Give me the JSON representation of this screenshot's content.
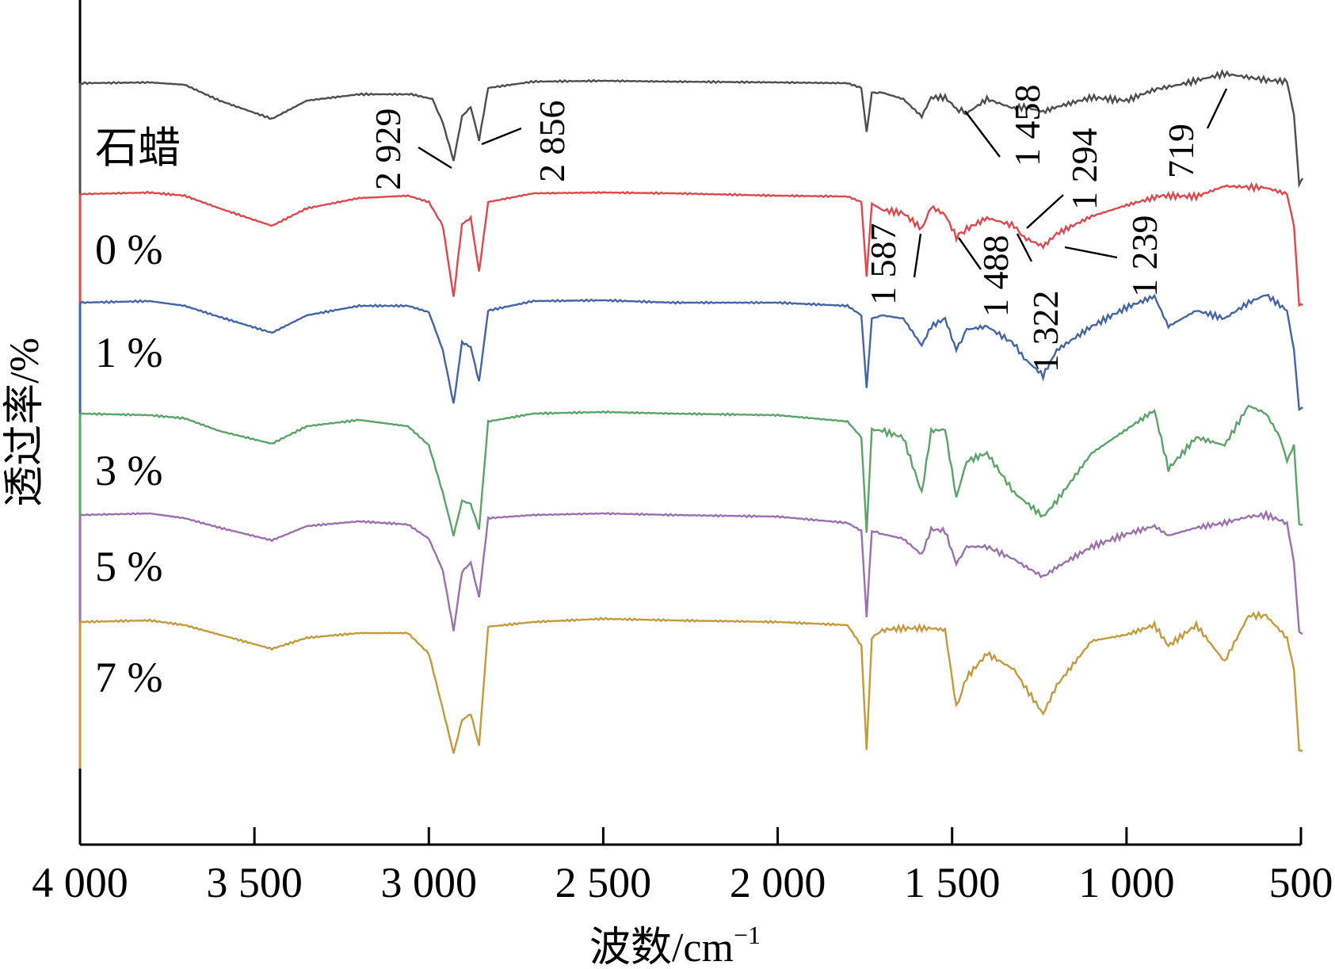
{
  "chart_data": {
    "type": "line",
    "xlabel": "波数/cm",
    "xlabel_sup": "−1",
    "ylabel": "透过率/%",
    "xlim": [
      4000,
      500
    ],
    "x_reversed": true,
    "xticks": [
      4000,
      3500,
      3000,
      2500,
      2000,
      1500,
      1000,
      500
    ],
    "xtick_labels": [
      "4 000",
      "3 500",
      "3 000",
      "2 500",
      "2 000",
      "1 500",
      "1 000",
      "500"
    ],
    "series": [
      {
        "name": "石蜡",
        "color": "#4d4d4d",
        "baseline": 0,
        "points": [
          [
            4000,
            0
          ],
          [
            3800,
            1
          ],
          [
            3700,
            -2
          ],
          [
            3600,
            -22
          ],
          [
            3450,
            -45
          ],
          [
            3350,
            -22
          ],
          [
            3200,
            -14
          ],
          [
            3050,
            -14
          ],
          [
            2990,
            -20
          ],
          [
            2960,
            -50
          ],
          [
            2929,
            -98
          ],
          [
            2905,
            -42
          ],
          [
            2880,
            -30
          ],
          [
            2856,
            -72
          ],
          [
            2830,
            -6
          ],
          [
            2700,
            2
          ],
          [
            2500,
            3
          ],
          [
            2300,
            2
          ],
          [
            2000,
            1
          ],
          [
            1800,
            0
          ],
          [
            1760,
            -6
          ],
          [
            1745,
            -62
          ],
          [
            1730,
            -12
          ],
          [
            1700,
            -12
          ],
          [
            1640,
            -20
          ],
          [
            1587,
            -42
          ],
          [
            1560,
            -18
          ],
          [
            1520,
            -18
          ],
          [
            1488,
            -32
          ],
          [
            1458,
            -38
          ],
          [
            1400,
            -20
          ],
          [
            1322,
            -32
          ],
          [
            1294,
            -30
          ],
          [
            1239,
            -36
          ],
          [
            1200,
            -30
          ],
          [
            1100,
            -18
          ],
          [
            1000,
            -22
          ],
          [
            920,
            -8
          ],
          [
            850,
            -2
          ],
          [
            719,
            12
          ],
          [
            600,
            4
          ],
          [
            540,
            2
          ],
          [
            520,
            -40
          ],
          [
            505,
            -128
          ],
          [
            495,
            -120
          ]
        ]
      },
      {
        "name": "0 %",
        "color": "#e0474c",
        "baseline": 0,
        "points": [
          [
            4000,
            0
          ],
          [
            3800,
            2
          ],
          [
            3700,
            -2
          ],
          [
            3600,
            -18
          ],
          [
            3450,
            -40
          ],
          [
            3350,
            -18
          ],
          [
            3200,
            -5
          ],
          [
            3060,
            -2
          ],
          [
            3000,
            -10
          ],
          [
            2960,
            -40
          ],
          [
            2929,
            -130
          ],
          [
            2905,
            -38
          ],
          [
            2880,
            -30
          ],
          [
            2856,
            -98
          ],
          [
            2830,
            -10
          ],
          [
            2700,
            1
          ],
          [
            2500,
            2
          ],
          [
            2300,
            1
          ],
          [
            2000,
            -2
          ],
          [
            1800,
            -3
          ],
          [
            1760,
            -10
          ],
          [
            1745,
            -104
          ],
          [
            1730,
            -12
          ],
          [
            1700,
            -20
          ],
          [
            1640,
            -24
          ],
          [
            1587,
            -44
          ],
          [
            1560,
            -16
          ],
          [
            1520,
            -26
          ],
          [
            1488,
            -54
          ],
          [
            1458,
            -44
          ],
          [
            1400,
            -30
          ],
          [
            1322,
            -40
          ],
          [
            1294,
            -55
          ],
          [
            1239,
            -66
          ],
          [
            1200,
            -50
          ],
          [
            1100,
            -28
          ],
          [
            1000,
            -14
          ],
          [
            900,
            -2
          ],
          [
            800,
            -3
          ],
          [
            719,
            10
          ],
          [
            600,
            8
          ],
          [
            540,
            0
          ],
          [
            520,
            -40
          ],
          [
            505,
            -140
          ],
          [
            495,
            -140
          ]
        ]
      },
      {
        "name": "1 %",
        "color": "#4264a8",
        "baseline": 0,
        "points": [
          [
            4000,
            0
          ],
          [
            3800,
            2
          ],
          [
            3700,
            -4
          ],
          [
            3600,
            -18
          ],
          [
            3450,
            -38
          ],
          [
            3350,
            -16
          ],
          [
            3200,
            -4
          ],
          [
            3060,
            -4
          ],
          [
            3000,
            -12
          ],
          [
            2960,
            -60
          ],
          [
            2929,
            -128
          ],
          [
            2905,
            -50
          ],
          [
            2880,
            -56
          ],
          [
            2856,
            -100
          ],
          [
            2830,
            -10
          ],
          [
            2700,
            2
          ],
          [
            2500,
            3
          ],
          [
            2300,
            0
          ],
          [
            2000,
            0
          ],
          [
            1800,
            -4
          ],
          [
            1760,
            -16
          ],
          [
            1745,
            -108
          ],
          [
            1730,
            -20
          ],
          [
            1700,
            -16
          ],
          [
            1640,
            -20
          ],
          [
            1587,
            -54
          ],
          [
            1560,
            -30
          ],
          [
            1520,
            -20
          ],
          [
            1488,
            -60
          ],
          [
            1458,
            -34
          ],
          [
            1400,
            -30
          ],
          [
            1322,
            -52
          ],
          [
            1294,
            -70
          ],
          [
            1239,
            -92
          ],
          [
            1200,
            -60
          ],
          [
            1100,
            -30
          ],
          [
            1000,
            -6
          ],
          [
            920,
            8
          ],
          [
            880,
            -30
          ],
          [
            800,
            -10
          ],
          [
            719,
            -20
          ],
          [
            650,
            0
          ],
          [
            600,
            10
          ],
          [
            540,
            -10
          ],
          [
            520,
            -60
          ],
          [
            505,
            -134
          ],
          [
            495,
            -132
          ]
        ]
      },
      {
        "name": "3 %",
        "color": "#5aa468",
        "baseline": 0,
        "points": [
          [
            4000,
            0
          ],
          [
            3800,
            -2
          ],
          [
            3700,
            -6
          ],
          [
            3600,
            -22
          ],
          [
            3450,
            -38
          ],
          [
            3350,
            -16
          ],
          [
            3200,
            -8
          ],
          [
            3060,
            -16
          ],
          [
            3000,
            -40
          ],
          [
            2960,
            -100
          ],
          [
            2929,
            -154
          ],
          [
            2905,
            -110
          ],
          [
            2880,
            -114
          ],
          [
            2856,
            -146
          ],
          [
            2830,
            -10
          ],
          [
            2700,
            0
          ],
          [
            2500,
            2
          ],
          [
            2300,
            0
          ],
          [
            2000,
            -2
          ],
          [
            1800,
            -10
          ],
          [
            1760,
            -30
          ],
          [
            1745,
            -150
          ],
          [
            1730,
            -20
          ],
          [
            1700,
            -22
          ],
          [
            1640,
            -30
          ],
          [
            1587,
            -100
          ],
          [
            1560,
            -22
          ],
          [
            1520,
            -20
          ],
          [
            1488,
            -106
          ],
          [
            1458,
            -60
          ],
          [
            1400,
            -50
          ],
          [
            1322,
            -100
          ],
          [
            1294,
            -110
          ],
          [
            1239,
            -130
          ],
          [
            1200,
            -110
          ],
          [
            1100,
            -50
          ],
          [
            1000,
            -20
          ],
          [
            920,
            4
          ],
          [
            880,
            -70
          ],
          [
            800,
            -30
          ],
          [
            719,
            -40
          ],
          [
            650,
            10
          ],
          [
            600,
            0
          ],
          [
            560,
            -30
          ],
          [
            540,
            -60
          ],
          [
            520,
            -40
          ],
          [
            505,
            -140
          ],
          [
            495,
            -140
          ]
        ]
      },
      {
        "name": "5 %",
        "color": "#9b6fb0",
        "baseline": 0,
        "points": [
          [
            4000,
            0
          ],
          [
            3800,
            2
          ],
          [
            3700,
            -4
          ],
          [
            3600,
            -16
          ],
          [
            3450,
            -32
          ],
          [
            3350,
            -14
          ],
          [
            3200,
            -8
          ],
          [
            3060,
            -12
          ],
          [
            3000,
            -30
          ],
          [
            2960,
            -70
          ],
          [
            2929,
            -146
          ],
          [
            2905,
            -72
          ],
          [
            2880,
            -60
          ],
          [
            2856,
            -104
          ],
          [
            2830,
            -4
          ],
          [
            2700,
            0
          ],
          [
            2500,
            2
          ],
          [
            2300,
            0
          ],
          [
            2000,
            -2
          ],
          [
            1800,
            -10
          ],
          [
            1760,
            -20
          ],
          [
            1745,
            -128
          ],
          [
            1730,
            -20
          ],
          [
            1700,
            -24
          ],
          [
            1640,
            -30
          ],
          [
            1587,
            -50
          ],
          [
            1560,
            -18
          ],
          [
            1520,
            -20
          ],
          [
            1488,
            -62
          ],
          [
            1458,
            -40
          ],
          [
            1400,
            -40
          ],
          [
            1322,
            -56
          ],
          [
            1294,
            -64
          ],
          [
            1239,
            -78
          ],
          [
            1200,
            -66
          ],
          [
            1100,
            -40
          ],
          [
            1000,
            -24
          ],
          [
            920,
            -14
          ],
          [
            880,
            -26
          ],
          [
            800,
            -16
          ],
          [
            719,
            -10
          ],
          [
            650,
            -2
          ],
          [
            600,
            0
          ],
          [
            540,
            -10
          ],
          [
            520,
            -60
          ],
          [
            505,
            -148
          ],
          [
            495,
            -150
          ]
        ]
      },
      {
        "name": "7 %",
        "color": "#c49a3a",
        "baseline": 0,
        "points": [
          [
            4000,
            0
          ],
          [
            3800,
            2
          ],
          [
            3700,
            -4
          ],
          [
            3600,
            -16
          ],
          [
            3450,
            -34
          ],
          [
            3350,
            -20
          ],
          [
            3200,
            -14
          ],
          [
            3060,
            -14
          ],
          [
            3000,
            -40
          ],
          [
            2960,
            -110
          ],
          [
            2929,
            -166
          ],
          [
            2905,
            -124
          ],
          [
            2880,
            -116
          ],
          [
            2856,
            -156
          ],
          [
            2830,
            -6
          ],
          [
            2700,
            0
          ],
          [
            2500,
            4
          ],
          [
            2300,
            2
          ],
          [
            2000,
            0
          ],
          [
            1800,
            -4
          ],
          [
            1760,
            -30
          ],
          [
            1745,
            -162
          ],
          [
            1730,
            -20
          ],
          [
            1700,
            -10
          ],
          [
            1640,
            -8
          ],
          [
            1587,
            -8
          ],
          [
            1560,
            -8
          ],
          [
            1520,
            -10
          ],
          [
            1488,
            -108
          ],
          [
            1458,
            -70
          ],
          [
            1400,
            -40
          ],
          [
            1322,
            -60
          ],
          [
            1294,
            -80
          ],
          [
            1239,
            -116
          ],
          [
            1200,
            -80
          ],
          [
            1100,
            -24
          ],
          [
            1000,
            -16
          ],
          [
            920,
            -4
          ],
          [
            880,
            -30
          ],
          [
            800,
            -4
          ],
          [
            719,
            -50
          ],
          [
            650,
            8
          ],
          [
            600,
            8
          ],
          [
            540,
            -20
          ],
          [
            520,
            -60
          ],
          [
            505,
            -162
          ],
          [
            495,
            -162
          ]
        ]
      }
    ],
    "annotations": [
      {
        "label": "2 929",
        "x": 2929
      },
      {
        "label": "2 856",
        "x": 2856
      },
      {
        "label": "1 458",
        "x": 1458
      },
      {
        "label": "1 294",
        "x": 1294
      },
      {
        "label": "719",
        "x": 719
      },
      {
        "label": "1 587",
        "x": 1587
      },
      {
        "label": "1 488",
        "x": 1488
      },
      {
        "label": "1 322",
        "x": 1322
      },
      {
        "label": "1 239",
        "x": 1239
      }
    ]
  }
}
